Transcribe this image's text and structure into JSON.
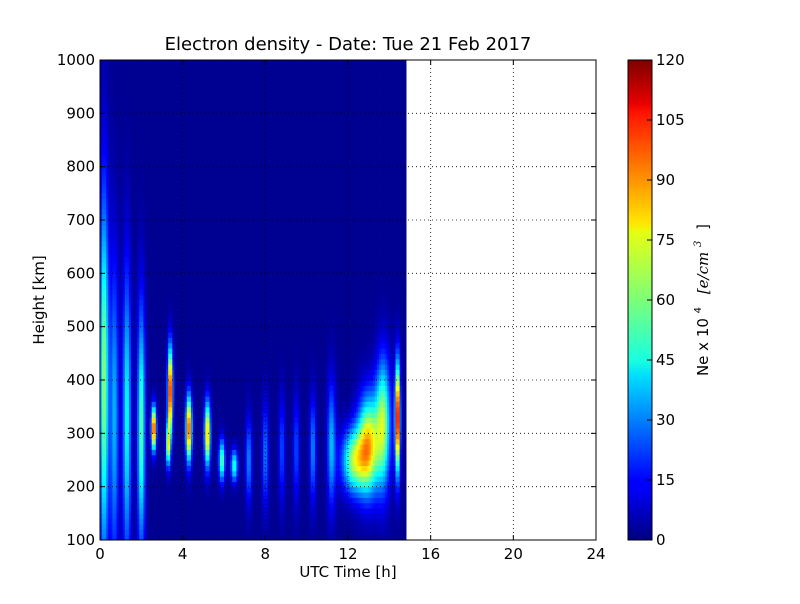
{
  "chart_data": {
    "type": "heatmap",
    "title": "Electron density - Date: Tue 21 Feb 2017",
    "xlabel": "UTC Time [h]",
    "ylabel": "Height [km]",
    "xlim": [
      0,
      24
    ],
    "ylim": [
      100,
      1000
    ],
    "x_ticks": [
      "0",
      "4",
      "8",
      "12",
      "16",
      "20",
      "24"
    ],
    "y_ticks": [
      "100",
      "200",
      "300",
      "400",
      "500",
      "600",
      "700",
      "800",
      "900",
      "1000"
    ],
    "grid": true,
    "data_end_hour": 14.7,
    "background_value": 2,
    "features": [
      {
        "t": 0.2,
        "h": 400,
        "amp": 60,
        "ht": 350,
        "wt": 0.22
      },
      {
        "t": 0.7,
        "h": 330,
        "amp": 35,
        "ht": 300,
        "wt": 0.2
      },
      {
        "t": 1.3,
        "h": 330,
        "amp": 45,
        "ht": 280,
        "wt": 0.2
      },
      {
        "t": 2.0,
        "h": 310,
        "amp": 55,
        "ht": 230,
        "wt": 0.18
      },
      {
        "t": 2.6,
        "h": 310,
        "amp": 105,
        "ht": 40,
        "wt": 0.12
      },
      {
        "t": 3.4,
        "h": 380,
        "amp": 110,
        "ht": 80,
        "wt": 0.12
      },
      {
        "t": 3.3,
        "h": 280,
        "amp": 70,
        "ht": 40,
        "wt": 0.1
      },
      {
        "t": 4.3,
        "h": 310,
        "amp": 100,
        "ht": 60,
        "wt": 0.14
      },
      {
        "t": 5.2,
        "h": 300,
        "amp": 85,
        "ht": 60,
        "wt": 0.14
      },
      {
        "t": 5.9,
        "h": 250,
        "amp": 55,
        "ht": 40,
        "wt": 0.15
      },
      {
        "t": 6.5,
        "h": 240,
        "amp": 50,
        "ht": 30,
        "wt": 0.16
      },
      {
        "t": 7.2,
        "h": 250,
        "amp": 30,
        "ht": 80,
        "wt": 0.15
      },
      {
        "t": 8.0,
        "h": 260,
        "amp": 28,
        "ht": 100,
        "wt": 0.15
      },
      {
        "t": 8.8,
        "h": 270,
        "amp": 22,
        "ht": 100,
        "wt": 0.15
      },
      {
        "t": 9.5,
        "h": 270,
        "amp": 22,
        "ht": 100,
        "wt": 0.15
      },
      {
        "t": 10.3,
        "h": 270,
        "amp": 30,
        "ht": 100,
        "wt": 0.15
      },
      {
        "t": 11.2,
        "h": 280,
        "amp": 35,
        "ht": 120,
        "wt": 0.2
      },
      {
        "t": 12.3,
        "h": 250,
        "amp": 60,
        "ht": 60,
        "wt": 0.6
      },
      {
        "t": 13.0,
        "h": 280,
        "amp": 75,
        "ht": 90,
        "wt": 0.5
      },
      {
        "t": 13.7,
        "h": 320,
        "amp": 60,
        "ht": 120,
        "wt": 0.35
      },
      {
        "t": 14.4,
        "h": 330,
        "amp": 115,
        "ht": 100,
        "wt": 0.12
      }
    ],
    "colorbar": {
      "label_prefix": "Ne x 10",
      "label_exponent": "4",
      "label_unit": "[e/cm",
      "label_unit_exponent": "3",
      "label_close": "]",
      "min": 0,
      "max": 120,
      "ticks": [
        "0",
        "15",
        "30",
        "45",
        "60",
        "75",
        "90",
        "105",
        "120"
      ]
    }
  }
}
